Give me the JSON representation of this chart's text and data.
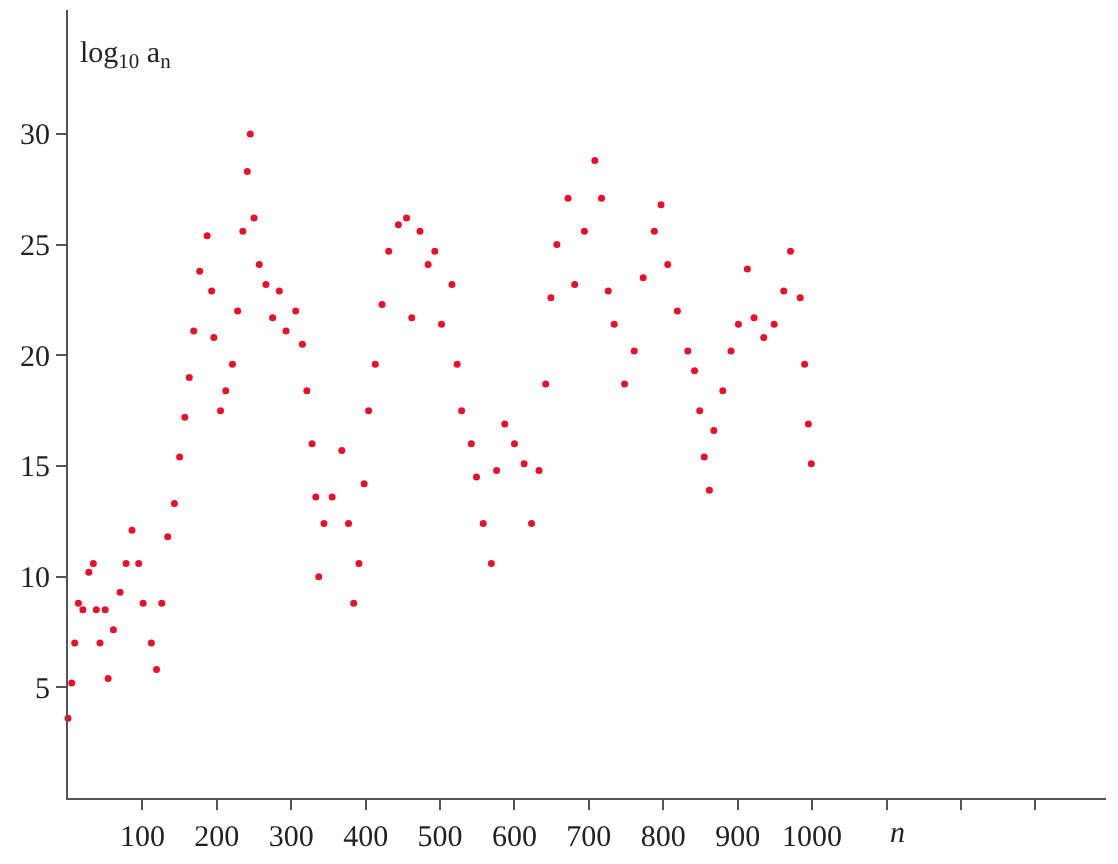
{
  "chart_data": {
    "type": "scatter",
    "xlabel": "n",
    "ylabel": "log$_{10}$ a$_{n}$",
    "marker": "circle",
    "grid": false,
    "legend": false,
    "xlim": [
      0,
      1395
    ],
    "ylim": [
      0,
      35.6
    ],
    "xticks": [
      100,
      200,
      300,
      400,
      500,
      600,
      700,
      800,
      900,
      1000,
      {
        "value": 1100,
        "label": null
      },
      {
        "value": 1200,
        "label": null
      },
      {
        "value": 1300,
        "label": null
      }
    ],
    "yticks": [
      5,
      10,
      15,
      20,
      25,
      30
    ],
    "series": [
      {
        "color": "#e8112d",
        "x": [
          0,
          5,
          9,
          14,
          20,
          28,
          34,
          38,
          43,
          50,
          54,
          61,
          70,
          78,
          86,
          95,
          101,
          112,
          119,
          126,
          134,
          143,
          150,
          157,
          163,
          169,
          177,
          187,
          193,
          196,
          205,
          212,
          221,
          228,
          235,
          241,
          245,
          250,
          257,
          266,
          275,
          284,
          293,
          306,
          315,
          321,
          328,
          333,
          337,
          344,
          355,
          368,
          377,
          384,
          391,
          398,
          404,
          413,
          422,
          431,
          444,
          455,
          462,
          473,
          484,
          493,
          502,
          516,
          523,
          529,
          542,
          549,
          558,
          569,
          576,
          587,
          600,
          613,
          623,
          633,
          642,
          649,
          657,
          672,
          681,
          694,
          708,
          717,
          726,
          734,
          748,
          761,
          773,
          788,
          797,
          806,
          819,
          833,
          842,
          849,
          855,
          862,
          868,
          880,
          891,
          901,
          913,
          922,
          935,
          949,
          962,
          971,
          984,
          990,
          995,
          999
        ],
        "values": [
          3.6,
          5.2,
          7.0,
          8.8,
          8.5,
          10.2,
          10.6,
          8.5,
          7.0,
          8.5,
          5.4,
          7.6,
          9.3,
          10.6,
          12.1,
          10.6,
          8.8,
          7.0,
          5.8,
          8.8,
          11.8,
          13.3,
          15.4,
          17.2,
          19.0,
          21.1,
          23.8,
          25.4,
          22.9,
          20.8,
          17.5,
          18.4,
          19.6,
          22.0,
          25.6,
          28.3,
          30.0,
          26.2,
          24.1,
          23.2,
          21.7,
          22.9,
          21.1,
          22.0,
          20.5,
          18.4,
          16.0,
          13.6,
          10.0,
          12.4,
          13.6,
          15.7,
          12.4,
          8.8,
          10.6,
          14.2,
          17.5,
          19.6,
          22.3,
          24.7,
          25.9,
          26.2,
          21.7,
          25.6,
          24.1,
          24.7,
          21.4,
          23.2,
          19.6,
          17.5,
          16.0,
          14.5,
          12.4,
          10.6,
          14.8,
          16.9,
          16.0,
          15.1,
          12.4,
          14.8,
          18.7,
          22.6,
          25.0,
          27.1,
          23.2,
          25.6,
          28.8,
          27.1,
          22.9,
          21.4,
          18.7,
          20.2,
          23.5,
          25.6,
          26.8,
          24.1,
          22.0,
          20.2,
          19.3,
          17.5,
          15.4,
          13.9,
          16.6,
          18.4,
          20.2,
          21.4,
          23.9,
          21.7,
          20.8,
          21.4,
          22.9,
          24.7,
          22.6,
          19.6,
          16.9,
          15.1
        ]
      }
    ]
  }
}
